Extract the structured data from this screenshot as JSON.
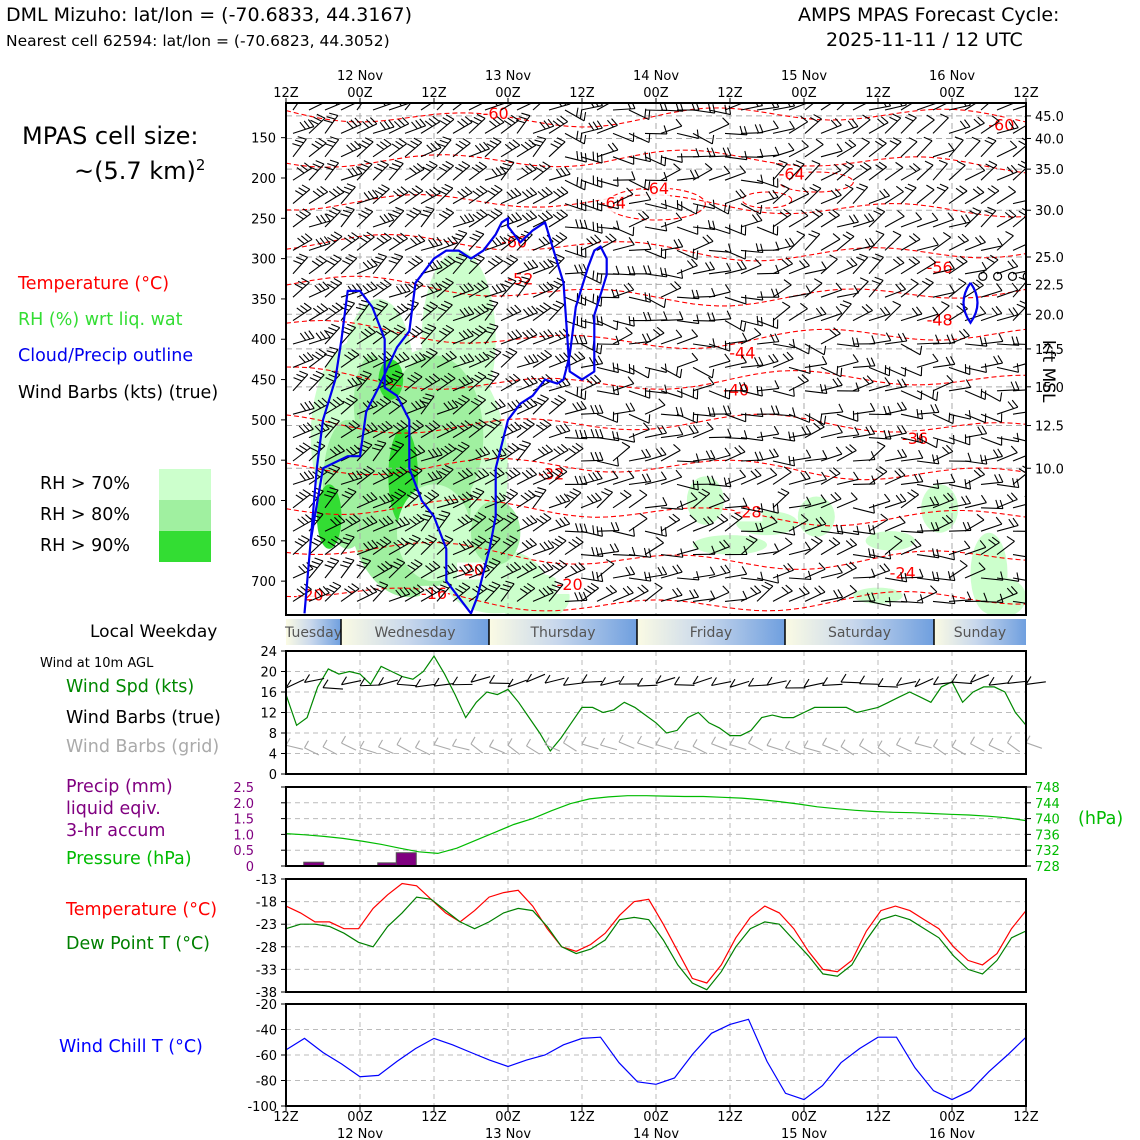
{
  "header": {
    "station": "DML Mizuho: lat/lon = (-70.6833, 44.3167)",
    "nearest": "Nearest cell 62594: lat/lon = (-70.6823, 44.3052)",
    "cycle_line1": "AMPS MPAS Forecast Cycle:",
    "cycle_line2": "2025-11-11 / 12 UTC"
  },
  "cell_size": {
    "line1": "MPAS cell size:",
    "line2": "~(5.7 km)",
    "sup": "2"
  },
  "legend": {
    "temperature": "Temperature (°C)",
    "rh": "RH (%) wrt liq. wat",
    "cloud": "Cloud/Precip outline",
    "barbs": "Wind Barbs (kts) (true)",
    "rh70": "RH > 70%",
    "rh80": "RH > 80%",
    "rh90": "RH > 90%"
  },
  "colors": {
    "temperature": "#ff0000",
    "rh_text": "#33dd33",
    "cloud": "#0000ee",
    "rh70": "#ccffcc",
    "rh80": "#a0f0a0",
    "rh90": "#33dd33",
    "wind_speed": "#008800",
    "pressure": "#00bb00",
    "precip": "#800080",
    "dewpoint": "#008000",
    "windchill": "#0000ff",
    "grid_barbs": "#aaaaaa"
  },
  "time_axis": {
    "ticks": [
      "12Z",
      "00Z",
      "12Z",
      "00Z",
      "12Z",
      "00Z",
      "12Z",
      "00Z",
      "12Z",
      "00Z",
      "12Z"
    ],
    "dates": [
      "12 Nov",
      "13 Nov",
      "14 Nov",
      "15 Nov",
      "16 Nov"
    ]
  },
  "weekdays": {
    "label": "Local Weekday",
    "days": [
      "Tuesday",
      "Wednesday",
      "Thursday",
      "Friday",
      "Saturday",
      "Sunday"
    ]
  },
  "panel_labels": {
    "wind_header": "Wind at 10m AGL",
    "wind_speed": "Wind Spd (kts)",
    "wind_barbs_true": "Wind Barbs (true)",
    "wind_barbs_grid": "Wind Barbs (grid)",
    "precip_1": "Precip (mm)",
    "precip_2": "liquid eqiv.",
    "precip_3": "3-hr accum",
    "pressure": "Pressure (hPa)",
    "pressure_unit": "(hPa)",
    "temperature": "Temperature (°C)",
    "dewpoint": "Dew Point T (°C)",
    "windchill": "Wind Chill T (°C)",
    "kft": "kft MSL"
  },
  "chart_data": [
    {
      "type": "line",
      "name": "upper-air cross-section",
      "x": "time steps 0-60 (3-hourly, 12Z 11 Nov to 12Z 16 Nov)",
      "pressure_ticks": [
        150,
        200,
        250,
        300,
        350,
        400,
        450,
        500,
        550,
        600,
        650,
        700
      ],
      "kft_ticks": [
        "45.0",
        "40.0",
        "35.0",
        "30.0",
        "25.0",
        "22.5",
        "20.0",
        "17.5",
        "15.0",
        "12.5",
        "10.0"
      ],
      "kft_pressures": [
        123,
        151,
        189,
        240,
        298,
        332,
        369,
        412,
        459,
        507,
        560
      ],
      "temperature_contour_labels": [
        {
          "text": "-60",
          "t": 17,
          "p": 127
        },
        {
          "text": "-60",
          "t": 58,
          "p": 141
        },
        {
          "text": "-64",
          "t": 41,
          "p": 202
        },
        {
          "text": "-64",
          "t": 30,
          "p": 220
        },
        {
          "text": "-64",
          "t": 26.5,
          "p": 238
        },
        {
          "text": "-60",
          "t": 18.5,
          "p": 286
        },
        {
          "text": "-52",
          "t": 19,
          "p": 332
        },
        {
          "text": "-56",
          "t": 53,
          "p": 318
        },
        {
          "text": "-48",
          "t": 53,
          "p": 383
        },
        {
          "text": "-44",
          "t": 37,
          "p": 424
        },
        {
          "text": "-40",
          "t": 36.5,
          "p": 470
        },
        {
          "text": "-36",
          "t": 51,
          "p": 530
        },
        {
          "text": "-32",
          "t": 21.5,
          "p": 574
        },
        {
          "text": "-28",
          "t": 37.5,
          "p": 621
        },
        {
          "text": "-24",
          "t": 50,
          "p": 697
        },
        {
          "text": "-20",
          "t": 15,
          "p": 693
        },
        {
          "text": "-20",
          "t": 23,
          "p": 711
        },
        {
          "text": "-16",
          "t": 12,
          "p": 722
        },
        {
          "text": "-20",
          "t": 2,
          "p": 724
        }
      ],
      "cloud_outline_t": [
        1.5,
        2,
        3,
        5,
        6,
        6.5,
        7.5,
        9,
        10,
        10.5,
        11,
        12,
        13,
        14,
        15,
        16,
        17,
        17.5,
        18,
        18,
        19,
        20,
        21,
        21.5,
        22.5,
        23,
        24,
        25,
        25,
        26,
        26,
        25.5,
        25,
        24.5,
        23.5,
        23,
        22.5,
        22,
        21,
        20,
        19,
        18,
        17,
        17,
        16.5,
        16,
        15.5,
        15,
        14,
        13,
        13,
        12,
        11,
        10,
        10,
        9,
        8,
        8,
        7,
        6,
        5,
        4.5,
        4,
        3,
        2.5,
        2,
        1.5
      ],
      "cloud_outline_p": [
        740,
        650,
        560,
        545,
        545,
        490,
        460,
        410,
        390,
        330,
        320,
        300,
        290,
        290,
        300,
        290,
        270,
        255,
        250,
        260,
        280,
        265,
        255,
        280,
        330,
        440,
        450,
        440,
        370,
        320,
        300,
        285,
        290,
        310,
        360,
        420,
        450,
        455,
        450,
        470,
        480,
        500,
        560,
        620,
        660,
        690,
        720,
        740,
        720,
        700,
        660,
        620,
        600,
        560,
        500,
        470,
        460,
        400,
        360,
        340,
        340,
        400,
        450,
        500,
        560,
        650,
        740
      ]
    },
    {
      "type": "line",
      "name": "wind speed 10m",
      "ylim": [
        0,
        24
      ],
      "yticks": [
        0,
        4,
        8,
        12,
        16,
        20,
        24
      ],
      "ylabel": "Wind Spd (kts)",
      "values": [
        15.5,
        9.5,
        11,
        17,
        20.5,
        19.5,
        20,
        19.5,
        17.5,
        21,
        20,
        19,
        18.5,
        20,
        23,
        19.5,
        15.5,
        11,
        14,
        16,
        15.5,
        16.5,
        14,
        11,
        8,
        4.5,
        7,
        10,
        13,
        13,
        12,
        12.5,
        14,
        13,
        11.5,
        10,
        8,
        8.5,
        11,
        12,
        10,
        9,
        7.5,
        7.5,
        8.5,
        11,
        11.5,
        11,
        11,
        12,
        13,
        13,
        13,
        13,
        12,
        12.5,
        13,
        14,
        15,
        16,
        15,
        14,
        17,
        18,
        14,
        16,
        17,
        17,
        16,
        12,
        9.5
      ]
    },
    {
      "type": "bar",
      "name": "precip 3-hr accum",
      "ylim": [
        0,
        2.5
      ],
      "yticks": [
        0,
        0.5,
        1.0,
        1.5,
        2.0,
        2.5
      ],
      "ylabel": "Precip (mm)",
      "bars": [
        {
          "t": 1.5,
          "v": 0.12
        },
        {
          "t": 5.5,
          "v": 0.1
        },
        {
          "t": 6.5,
          "v": 0.42
        }
      ]
    },
    {
      "type": "line",
      "name": "pressure",
      "ylim": [
        728,
        748
      ],
      "yticks": [
        728,
        732,
        736,
        740,
        744,
        748
      ],
      "ylabel": "(hPa)",
      "values": [
        736.2,
        735.9,
        735.5,
        735,
        734.3,
        733.5,
        732.5,
        731.6,
        731.2,
        732.5,
        734.5,
        736.5,
        738.5,
        740,
        742,
        743.8,
        745,
        745.5,
        745.8,
        745.8,
        745.7,
        745.6,
        745.6,
        745.4,
        745.2,
        744.8,
        744.3,
        743.7,
        743,
        742.5,
        742.1,
        741.8,
        741.6,
        741.5,
        741.3,
        741.1,
        740.9,
        740.6,
        740.2,
        739.5
      ]
    },
    {
      "type": "line",
      "name": "temperature and dew point",
      "ylim": [
        -38,
        -13
      ],
      "yticks": [
        -13,
        -18,
        -23,
        -28,
        -33,
        -38
      ],
      "series": [
        {
          "name": "Temperature (°C)",
          "values": [
            -19,
            -20.5,
            -22.5,
            -22.5,
            -24,
            -24,
            -19.5,
            -16.5,
            -14,
            -14.5,
            -17.5,
            -20.5,
            -22.5,
            -20,
            -17,
            -16,
            -15.5,
            -19,
            -24,
            -28,
            -29,
            -27.5,
            -25,
            -21,
            -18,
            -17.5,
            -23,
            -29,
            -35,
            -36,
            -32,
            -26,
            -21.5,
            -19,
            -20.5,
            -24,
            -29,
            -33,
            -33.5,
            -31,
            -24.5,
            -20,
            -19,
            -20,
            -22,
            -24,
            -28,
            -31,
            -32,
            -29.5,
            -24,
            -20
          ]
        },
        {
          "name": "Dew Point T (°C)",
          "values": [
            -24,
            -23,
            -23,
            -23.5,
            -25,
            -27,
            -28,
            -23.5,
            -20.5,
            -17,
            -17.5,
            -20,
            -22.5,
            -24,
            -22.5,
            -20.5,
            -19.5,
            -20,
            -23.5,
            -28,
            -29.5,
            -28.5,
            -26.5,
            -22,
            -21.5,
            -22,
            -26.5,
            -32,
            -36,
            -37.5,
            -33.5,
            -28,
            -24,
            -22.5,
            -23,
            -26.5,
            -30,
            -34,
            -34.5,
            -32,
            -26.5,
            -22,
            -21,
            -22,
            -24,
            -26,
            -30,
            -33,
            -34,
            -31,
            -26,
            -24.5
          ]
        }
      ]
    },
    {
      "type": "line",
      "name": "wind chill",
      "ylim": [
        -100,
        -20
      ],
      "yticks": [
        -20,
        -40,
        -60,
        -80,
        -100
      ],
      "ylabel": "Wind Chill T (°C)",
      "values": [
        -56,
        -47,
        -58,
        -67,
        -77,
        -76,
        -65,
        -55,
        -47,
        -52,
        -58,
        -64,
        -69,
        -64,
        -60,
        -52,
        -47,
        -46,
        -66,
        -81,
        -83,
        -78,
        -59,
        -43,
        -36,
        -32,
        -65,
        -90,
        -95,
        -84,
        -66,
        -55,
        -46,
        -46,
        -70,
        -88,
        -95,
        -88,
        -73,
        -60,
        -46
      ]
    }
  ]
}
